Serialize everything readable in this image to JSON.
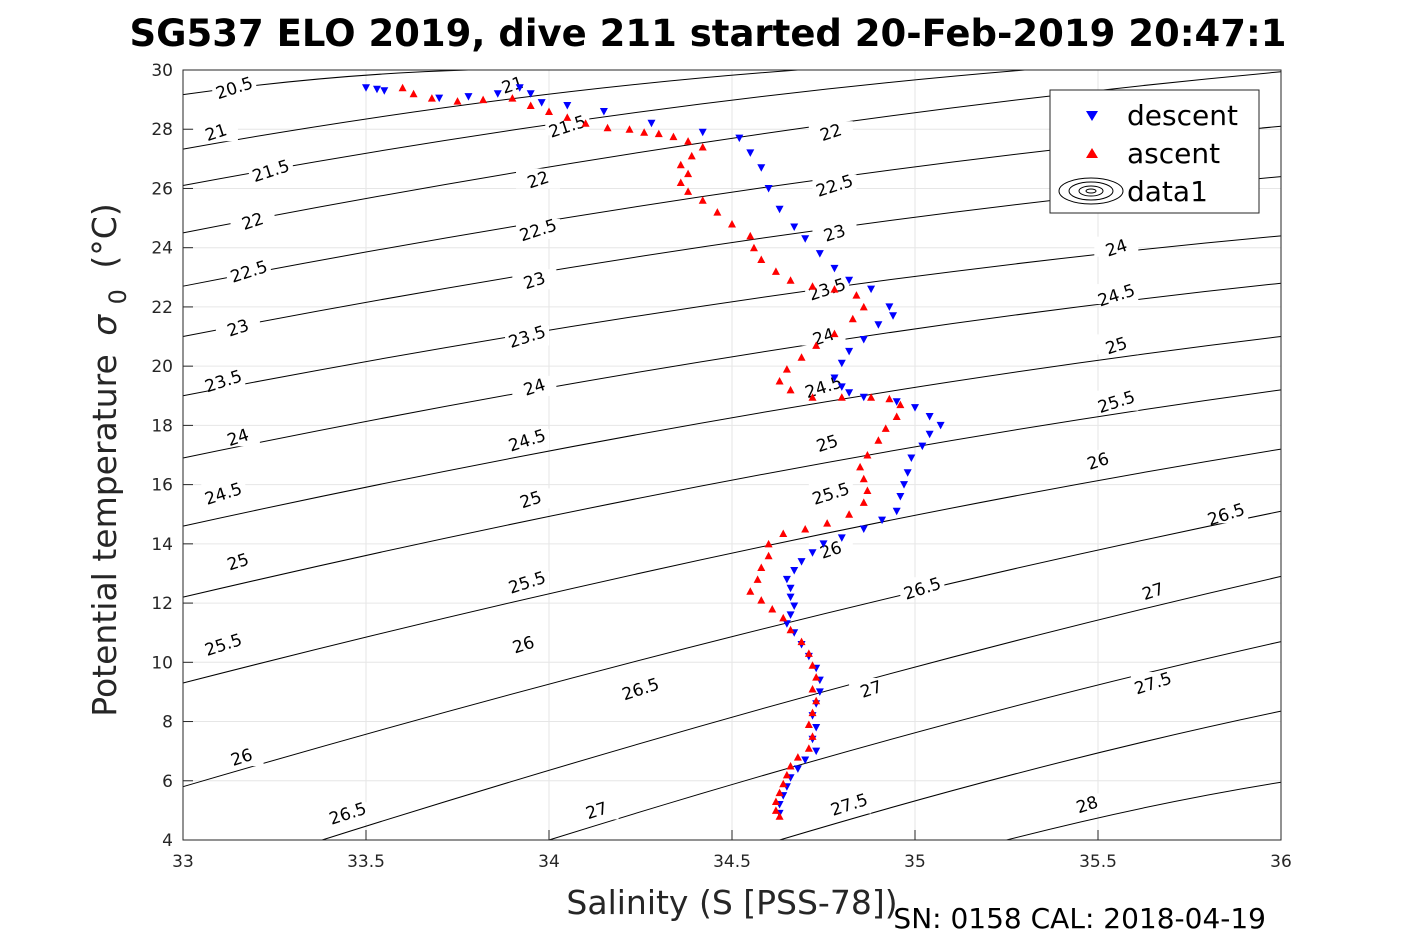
{
  "chart_data": {
    "type": "scatter",
    "title": "SG537 ELO 2019, dive 211 started 20-Feb-2019 20:47:1",
    "xlabel": "Salinity (S [PSS-78])",
    "ylabel_main": "Potential temperature",
    "ylabel_sym": "σ",
    "ylabel_sub": "0",
    "ylabel_unit": "(°C)",
    "xlim": [
      33,
      36
    ],
    "ylim": [
      4,
      30
    ],
    "xticks": [
      "33",
      "33.5",
      "34",
      "34.5",
      "35",
      "35.5",
      "36"
    ],
    "yticks": [
      "4",
      "6",
      "8",
      "10",
      "12",
      "14",
      "16",
      "18",
      "20",
      "22",
      "24",
      "26",
      "28",
      "30"
    ],
    "grid": true,
    "legend_position": "top-right",
    "legend": [
      "descent",
      "ascent",
      "data1"
    ],
    "footer": "SN: 0158  CAL: 2018-04-19",
    "series": [
      {
        "name": "descent",
        "color": "#0000ff",
        "marker": "triangle-down",
        "points": [
          [
            33.5,
            29.4
          ],
          [
            33.53,
            29.35
          ],
          [
            33.55,
            29.3
          ],
          [
            33.7,
            29.05
          ],
          [
            33.78,
            29.1
          ],
          [
            33.86,
            29.2
          ],
          [
            33.92,
            29.4
          ],
          [
            33.95,
            29.2
          ],
          [
            33.98,
            28.9
          ],
          [
            34.05,
            28.8
          ],
          [
            34.15,
            28.6
          ],
          [
            34.28,
            28.2
          ],
          [
            34.42,
            27.9
          ],
          [
            34.52,
            27.7
          ],
          [
            34.55,
            27.2
          ],
          [
            34.58,
            26.7
          ],
          [
            34.6,
            26.0
          ],
          [
            34.63,
            25.3
          ],
          [
            34.67,
            24.7
          ],
          [
            34.7,
            24.3
          ],
          [
            34.74,
            23.8
          ],
          [
            34.78,
            23.3
          ],
          [
            34.82,
            22.9
          ],
          [
            34.88,
            22.6
          ],
          [
            34.93,
            22.0
          ],
          [
            34.94,
            21.7
          ],
          [
            34.9,
            21.4
          ],
          [
            34.86,
            20.9
          ],
          [
            34.82,
            20.5
          ],
          [
            34.8,
            20.1
          ],
          [
            34.78,
            19.6
          ],
          [
            34.8,
            19.3
          ],
          [
            34.82,
            19.1
          ],
          [
            34.86,
            18.95
          ],
          [
            34.95,
            18.8
          ],
          [
            35.0,
            18.6
          ],
          [
            35.04,
            18.3
          ],
          [
            35.07,
            18.0
          ],
          [
            35.04,
            17.7
          ],
          [
            35.02,
            17.3
          ],
          [
            34.99,
            16.9
          ],
          [
            34.98,
            16.4
          ],
          [
            34.97,
            16.0
          ],
          [
            34.96,
            15.6
          ],
          [
            34.95,
            15.1
          ],
          [
            34.91,
            14.8
          ],
          [
            34.86,
            14.5
          ],
          [
            34.8,
            14.2
          ],
          [
            34.75,
            14.0
          ],
          [
            34.72,
            13.7
          ],
          [
            34.69,
            13.4
          ],
          [
            34.67,
            13.1
          ],
          [
            34.65,
            12.8
          ],
          [
            34.66,
            12.5
          ],
          [
            34.66,
            12.2
          ],
          [
            34.67,
            11.9
          ],
          [
            34.66,
            11.6
          ],
          [
            34.65,
            11.3
          ],
          [
            34.67,
            11.0
          ],
          [
            34.69,
            10.6
          ],
          [
            34.71,
            10.2
          ],
          [
            34.73,
            9.8
          ],
          [
            34.74,
            9.4
          ],
          [
            34.74,
            9.0
          ],
          [
            34.73,
            8.6
          ],
          [
            34.72,
            8.2
          ],
          [
            34.73,
            7.8
          ],
          [
            34.72,
            7.4
          ],
          [
            34.73,
            7.0
          ],
          [
            34.7,
            6.7
          ],
          [
            34.68,
            6.4
          ],
          [
            34.66,
            6.1
          ],
          [
            34.65,
            5.8
          ],
          [
            34.64,
            5.5
          ],
          [
            34.63,
            5.2
          ],
          [
            34.63,
            4.9
          ]
        ]
      },
      {
        "name": "ascent",
        "color": "#ff0000",
        "marker": "triangle-up",
        "points": [
          [
            33.6,
            29.4
          ],
          [
            33.63,
            29.2
          ],
          [
            33.68,
            29.05
          ],
          [
            33.75,
            28.95
          ],
          [
            33.82,
            29.0
          ],
          [
            33.9,
            29.05
          ],
          [
            33.95,
            28.8
          ],
          [
            34.0,
            28.6
          ],
          [
            34.05,
            28.4
          ],
          [
            34.1,
            28.2
          ],
          [
            34.16,
            28.05
          ],
          [
            34.22,
            28.0
          ],
          [
            34.26,
            27.9
          ],
          [
            34.3,
            27.85
          ],
          [
            34.34,
            27.75
          ],
          [
            34.38,
            27.6
          ],
          [
            34.42,
            27.4
          ],
          [
            34.39,
            27.1
          ],
          [
            34.36,
            26.8
          ],
          [
            34.38,
            26.5
          ],
          [
            34.36,
            26.2
          ],
          [
            34.38,
            25.9
          ],
          [
            34.42,
            25.6
          ],
          [
            34.46,
            25.2
          ],
          [
            34.5,
            24.8
          ],
          [
            34.55,
            24.4
          ],
          [
            34.56,
            24.0
          ],
          [
            34.58,
            23.6
          ],
          [
            34.62,
            23.2
          ],
          [
            34.66,
            22.9
          ],
          [
            34.72,
            22.7
          ],
          [
            34.78,
            22.6
          ],
          [
            34.84,
            22.4
          ],
          [
            34.86,
            22.0
          ],
          [
            34.83,
            21.6
          ],
          [
            34.78,
            21.1
          ],
          [
            34.73,
            20.7
          ],
          [
            34.69,
            20.3
          ],
          [
            34.65,
            19.9
          ],
          [
            34.63,
            19.5
          ],
          [
            34.66,
            19.2
          ],
          [
            34.72,
            18.95
          ],
          [
            34.8,
            18.95
          ],
          [
            34.88,
            18.95
          ],
          [
            34.93,
            18.9
          ],
          [
            34.96,
            18.7
          ],
          [
            34.95,
            18.3
          ],
          [
            34.92,
            17.9
          ],
          [
            34.9,
            17.5
          ],
          [
            34.87,
            17.0
          ],
          [
            34.85,
            16.6
          ],
          [
            34.86,
            16.2
          ],
          [
            34.87,
            15.8
          ],
          [
            34.86,
            15.4
          ],
          [
            34.82,
            15.0
          ],
          [
            34.76,
            14.7
          ],
          [
            34.7,
            14.5
          ],
          [
            34.64,
            14.35
          ],
          [
            34.6,
            14.0
          ],
          [
            34.6,
            13.6
          ],
          [
            34.58,
            13.2
          ],
          [
            34.57,
            12.8
          ],
          [
            34.55,
            12.4
          ],
          [
            34.58,
            12.1
          ],
          [
            34.61,
            11.8
          ],
          [
            34.64,
            11.5
          ],
          [
            34.66,
            11.1
          ],
          [
            34.69,
            10.7
          ],
          [
            34.71,
            10.3
          ],
          [
            34.72,
            9.9
          ],
          [
            34.73,
            9.5
          ],
          [
            34.72,
            9.1
          ],
          [
            34.73,
            8.7
          ],
          [
            34.72,
            8.3
          ],
          [
            34.71,
            7.9
          ],
          [
            34.72,
            7.5
          ],
          [
            34.71,
            7.1
          ],
          [
            34.68,
            6.8
          ],
          [
            34.66,
            6.5
          ],
          [
            34.65,
            6.2
          ],
          [
            34.64,
            5.9
          ],
          [
            34.63,
            5.6
          ],
          [
            34.62,
            5.3
          ],
          [
            34.62,
            5.0
          ],
          [
            34.63,
            4.8
          ]
        ]
      }
    ],
    "contours": [
      {
        "value": 20.5,
        "label": "20.5",
        "kind": "line",
        "x0": 33.0,
        "y0": 29.17,
        "x1": 33.78,
        "y1": 30.0
      },
      {
        "value": 21,
        "label": "21",
        "kind": "line",
        "x0": 33.0,
        "y0": 27.33,
        "x1": 34.68,
        "y1": 30.0
      },
      {
        "value": 21.5,
        "label": "21.5",
        "kind": "line",
        "x0": 33.0,
        "y0": 26.1,
        "x1": 35.3,
        "y1": 30.0
      },
      {
        "value": 22,
        "label": "22",
        "kind": "line",
        "x0": 33.0,
        "y0": 24.5,
        "x1": 36.0,
        "y1": 29.94
      },
      {
        "value": 22.5,
        "label": "22.5",
        "kind": "line",
        "x0": 33.0,
        "y0": 22.7,
        "x1": 36.0,
        "y1": 28.1
      },
      {
        "value": 23,
        "label": "23",
        "kind": "line",
        "x0": 33.0,
        "y0": 21.0,
        "x1": 36.0,
        "y1": 26.4
      },
      {
        "value": 23.5,
        "label": "23.5",
        "kind": "line",
        "x0": 33.0,
        "y0": 19.0,
        "x1": 36.0,
        "y1": 24.4
      },
      {
        "value": 24,
        "label": "24",
        "kind": "line",
        "x0": 33.0,
        "y0": 16.9,
        "x1": 36.0,
        "y1": 22.8
      },
      {
        "value": 24.5,
        "label": "24.5",
        "kind": "line",
        "x0": 33.0,
        "y0": 14.6,
        "x1": 36.0,
        "y1": 21.0
      },
      {
        "value": 25,
        "label": "25",
        "kind": "line",
        "x0": 33.0,
        "y0": 12.2,
        "x1": 36.0,
        "y1": 19.2
      },
      {
        "value": 25.5,
        "label": "25.5",
        "kind": "line",
        "x0": 33.0,
        "y0": 9.3,
        "x1": 36.0,
        "y1": 17.2
      },
      {
        "value": 26,
        "label": "26",
        "kind": "line",
        "x0": 33.0,
        "y0": 5.8,
        "x1": 36.0,
        "y1": 15.1
      },
      {
        "value": 26.5,
        "label": "26.5",
        "kind": "line",
        "x0": 33.38,
        "y0": 4.0,
        "x1": 36.0,
        "y1": 12.9
      },
      {
        "value": 27,
        "label": "27",
        "kind": "line",
        "x0": 34.0,
        "y0": 4.0,
        "x1": 36.0,
        "y1": 10.7
      },
      {
        "value": 27.5,
        "label": "27.5",
        "kind": "line",
        "x0": 34.63,
        "y0": 4.0,
        "x1": 36.0,
        "y1": 8.35
      },
      {
        "value": 28,
        "label": "28",
        "kind": "line",
        "x0": 35.25,
        "y0": 4.0,
        "x1": 36.0,
        "y1": 5.95
      }
    ],
    "contour_labels": [
      {
        "text": "20.5",
        "x": 33.14,
        "y": 29.4
      },
      {
        "text": "21",
        "x": 33.09,
        "y": 27.9
      },
      {
        "text": "21",
        "x": 33.9,
        "y": 29.5
      },
      {
        "text": "21.5",
        "x": 33.24,
        "y": 26.6
      },
      {
        "text": "21.5",
        "x": 34.05,
        "y": 28.1
      },
      {
        "text": "22",
        "x": 33.19,
        "y": 24.9
      },
      {
        "text": "22",
        "x": 33.97,
        "y": 26.3
      },
      {
        "text": "22",
        "x": 34.77,
        "y": 27.9
      },
      {
        "text": "22.5",
        "x": 33.18,
        "y": 23.2
      },
      {
        "text": "22.5",
        "x": 33.97,
        "y": 24.6
      },
      {
        "text": "22.5",
        "x": 34.78,
        "y": 26.1
      },
      {
        "text": "23",
        "x": 33.15,
        "y": 21.3
      },
      {
        "text": "23",
        "x": 33.96,
        "y": 22.9
      },
      {
        "text": "23",
        "x": 34.78,
        "y": 24.5
      },
      {
        "text": "23.5",
        "x": 33.11,
        "y": 19.5
      },
      {
        "text": "23.5",
        "x": 33.94,
        "y": 21.0
      },
      {
        "text": "23.5",
        "x": 34.76,
        "y": 22.6
      },
      {
        "text": "24",
        "x": 33.15,
        "y": 17.6
      },
      {
        "text": "24",
        "x": 33.96,
        "y": 19.3
      },
      {
        "text": "24",
        "x": 34.75,
        "y": 21.0
      },
      {
        "text": "24",
        "x": 35.55,
        "y": 24.0
      },
      {
        "text": "24.5",
        "x": 33.11,
        "y": 15.7
      },
      {
        "text": "24.5",
        "x": 33.94,
        "y": 17.5
      },
      {
        "text": "24.5",
        "x": 34.75,
        "y": 19.3
      },
      {
        "text": "24.5",
        "x": 35.55,
        "y": 22.4
      },
      {
        "text": "25",
        "x": 33.15,
        "y": 13.4
      },
      {
        "text": "25",
        "x": 33.95,
        "y": 15.5
      },
      {
        "text": "25",
        "x": 34.76,
        "y": 17.4
      },
      {
        "text": "25",
        "x": 35.55,
        "y": 20.7
      },
      {
        "text": "25.5",
        "x": 33.11,
        "y": 10.6
      },
      {
        "text": "25.5",
        "x": 33.94,
        "y": 12.7
      },
      {
        "text": "25.5",
        "x": 34.77,
        "y": 15.7
      },
      {
        "text": "25.5",
        "x": 35.55,
        "y": 18.8
      },
      {
        "text": "26",
        "x": 33.16,
        "y": 6.8
      },
      {
        "text": "26",
        "x": 33.93,
        "y": 10.6
      },
      {
        "text": "26",
        "x": 34.77,
        "y": 13.8
      },
      {
        "text": "26",
        "x": 35.5,
        "y": 16.8
      },
      {
        "text": "26.5",
        "x": 33.45,
        "y": 4.9
      },
      {
        "text": "26.5",
        "x": 34.25,
        "y": 9.1
      },
      {
        "text": "26.5",
        "x": 35.02,
        "y": 12.5
      },
      {
        "text": "26.5",
        "x": 35.85,
        "y": 15.0
      },
      {
        "text": "27",
        "x": 34.13,
        "y": 5.0
      },
      {
        "text": "27",
        "x": 34.88,
        "y": 9.1
      },
      {
        "text": "27",
        "x": 35.65,
        "y": 12.4
      },
      {
        "text": "27.5",
        "x": 34.82,
        "y": 5.2
      },
      {
        "text": "27.5",
        "x": 35.65,
        "y": 9.3
      },
      {
        "text": "28",
        "x": 35.47,
        "y": 5.2
      }
    ]
  }
}
